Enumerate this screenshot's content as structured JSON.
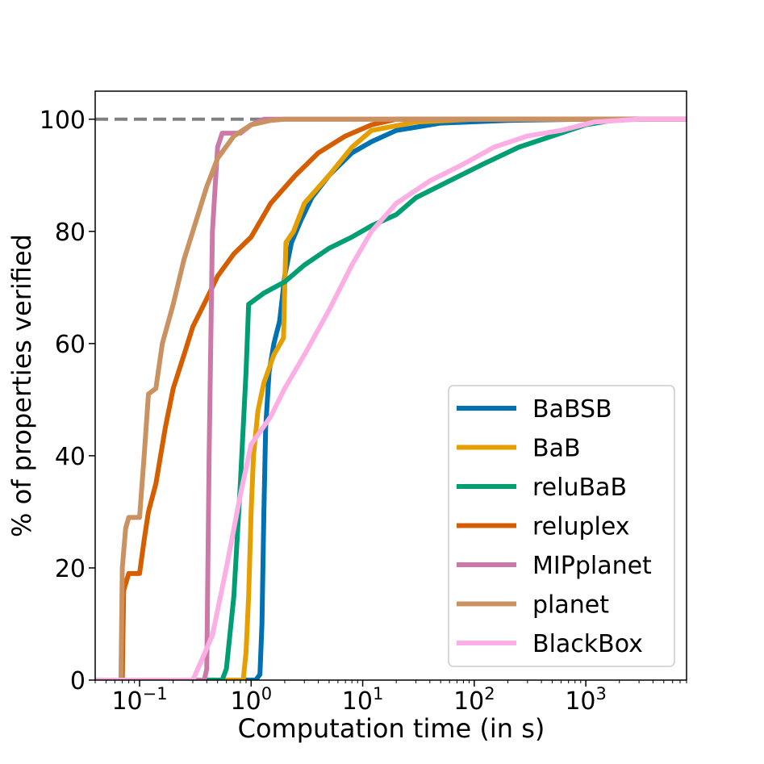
{
  "chart_data": {
    "type": "line",
    "xlabel": "Computation time (in s)",
    "ylabel": "% of properties verified",
    "xscale": "log",
    "xlim": [
      0.04,
      8000
    ],
    "ylim": [
      0,
      105
    ],
    "x_ticks": [
      {
        "value": 0.1,
        "base": "10",
        "exp": "−1"
      },
      {
        "value": 1,
        "base": "10",
        "exp": "0"
      },
      {
        "value": 10,
        "base": "10",
        "exp": "1"
      },
      {
        "value": 100,
        "base": "10",
        "exp": "2"
      },
      {
        "value": 1000,
        "base": "10",
        "exp": "3"
      }
    ],
    "y_ticks": [
      0,
      20,
      40,
      60,
      80,
      100
    ],
    "reference_line": {
      "y": 100,
      "style": "dashed",
      "color": "#808080"
    },
    "legend_position": "lower-right",
    "series": [
      {
        "name": "BaBSB",
        "color": "#0072b2",
        "points": [
          [
            0.04,
            0
          ],
          [
            1.1,
            0
          ],
          [
            1.2,
            1
          ],
          [
            1.25,
            10
          ],
          [
            1.3,
            30
          ],
          [
            1.35,
            45
          ],
          [
            1.45,
            55
          ],
          [
            1.6,
            60
          ],
          [
            1.8,
            64
          ],
          [
            2,
            72
          ],
          [
            2.3,
            78
          ],
          [
            2.8,
            82
          ],
          [
            3.5,
            86
          ],
          [
            5,
            90
          ],
          [
            8,
            94
          ],
          [
            12,
            96
          ],
          [
            20,
            98
          ],
          [
            50,
            99.3
          ],
          [
            200,
            99.8
          ],
          [
            1000,
            100
          ],
          [
            8000,
            100
          ]
        ]
      },
      {
        "name": "BaB",
        "color": "#e69f00",
        "points": [
          [
            0.04,
            0
          ],
          [
            0.85,
            0
          ],
          [
            0.9,
            5
          ],
          [
            0.95,
            15
          ],
          [
            1.0,
            30
          ],
          [
            1.05,
            40
          ],
          [
            1.15,
            48
          ],
          [
            1.3,
            53
          ],
          [
            1.6,
            58
          ],
          [
            1.95,
            61
          ],
          [
            2.0,
            70
          ],
          [
            2.05,
            78
          ],
          [
            2.4,
            80
          ],
          [
            3,
            85
          ],
          [
            5,
            90
          ],
          [
            8,
            95
          ],
          [
            12,
            98
          ],
          [
            30,
            99.5
          ],
          [
            100,
            100
          ],
          [
            8000,
            100
          ]
        ]
      },
      {
        "name": "reluBaB",
        "color": "#009e73",
        "points": [
          [
            0.04,
            0
          ],
          [
            0.55,
            0
          ],
          [
            0.6,
            2
          ],
          [
            0.7,
            15
          ],
          [
            0.8,
            35
          ],
          [
            0.9,
            55
          ],
          [
            0.95,
            67
          ],
          [
            1.3,
            69
          ],
          [
            2,
            71
          ],
          [
            3,
            74
          ],
          [
            5,
            77
          ],
          [
            8,
            79
          ],
          [
            12,
            81
          ],
          [
            20,
            83
          ],
          [
            30,
            86
          ],
          [
            60,
            89
          ],
          [
            120,
            92
          ],
          [
            250,
            95
          ],
          [
            500,
            97
          ],
          [
            1000,
            99
          ],
          [
            2000,
            100
          ],
          [
            8000,
            100
          ]
        ]
      },
      {
        "name": "reluplex",
        "color": "#d55e00",
        "points": [
          [
            0.04,
            0
          ],
          [
            0.07,
            0
          ],
          [
            0.072,
            16
          ],
          [
            0.08,
            19
          ],
          [
            0.1,
            19
          ],
          [
            0.11,
            25
          ],
          [
            0.12,
            30
          ],
          [
            0.14,
            35
          ],
          [
            0.17,
            45
          ],
          [
            0.2,
            52
          ],
          [
            0.25,
            58
          ],
          [
            0.3,
            63
          ],
          [
            0.4,
            68
          ],
          [
            0.5,
            72
          ],
          [
            0.7,
            76
          ],
          [
            1,
            79
          ],
          [
            1.5,
            85
          ],
          [
            2.5,
            90
          ],
          [
            4,
            94
          ],
          [
            7,
            97
          ],
          [
            12,
            99
          ],
          [
            20,
            100
          ],
          [
            8000,
            100
          ]
        ]
      },
      {
        "name": "MIPplanet",
        "color": "#cc79a7",
        "points": [
          [
            0.04,
            0
          ],
          [
            0.38,
            0
          ],
          [
            0.4,
            2
          ],
          [
            0.42,
            40
          ],
          [
            0.45,
            80
          ],
          [
            0.5,
            95
          ],
          [
            0.55,
            97.5
          ],
          [
            0.8,
            97.5
          ],
          [
            1.0,
            99
          ],
          [
            1.3,
            100
          ],
          [
            8000,
            100
          ]
        ]
      },
      {
        "name": "planet",
        "color": "#ca9161",
        "points": [
          [
            0.04,
            0
          ],
          [
            0.068,
            0
          ],
          [
            0.07,
            20
          ],
          [
            0.075,
            27
          ],
          [
            0.08,
            29
          ],
          [
            0.1,
            29
          ],
          [
            0.11,
            40
          ],
          [
            0.12,
            51
          ],
          [
            0.14,
            52
          ],
          [
            0.16,
            60
          ],
          [
            0.2,
            67
          ],
          [
            0.25,
            75
          ],
          [
            0.3,
            80
          ],
          [
            0.4,
            88
          ],
          [
            0.5,
            93
          ],
          [
            0.7,
            97
          ],
          [
            1,
            99
          ],
          [
            1.5,
            99.8
          ],
          [
            2,
            100
          ],
          [
            8000,
            100
          ]
        ]
      },
      {
        "name": "BlackBox",
        "color": "#fbafe4",
        "points": [
          [
            0.04,
            0
          ],
          [
            0.3,
            0
          ],
          [
            0.35,
            3
          ],
          [
            0.45,
            8
          ],
          [
            0.6,
            20
          ],
          [
            0.8,
            33
          ],
          [
            1,
            42
          ],
          [
            1.5,
            47
          ],
          [
            2,
            52
          ],
          [
            3,
            58
          ],
          [
            5,
            66
          ],
          [
            8,
            74
          ],
          [
            12,
            80
          ],
          [
            20,
            85
          ],
          [
            40,
            89
          ],
          [
            80,
            92
          ],
          [
            150,
            95
          ],
          [
            300,
            97
          ],
          [
            600,
            98
          ],
          [
            1200,
            99.5
          ],
          [
            3000,
            100
          ],
          [
            8000,
            100
          ]
        ]
      }
    ]
  }
}
